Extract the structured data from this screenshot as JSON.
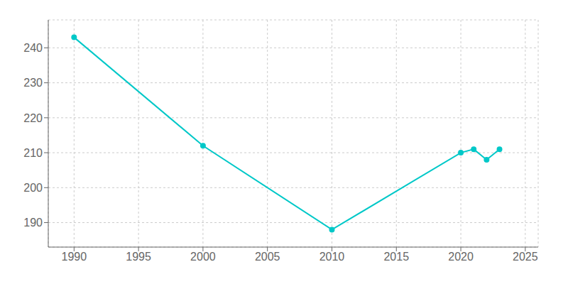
{
  "chart_data": {
    "type": "line",
    "x": [
      1990,
      2000,
      2010,
      2020,
      2021,
      2022,
      2023
    ],
    "values": [
      243,
      212,
      188,
      210,
      211,
      208,
      211
    ],
    "color": "#00C8C8",
    "marker": "circle",
    "xlim": [
      1988,
      2026
    ],
    "ylim": [
      183,
      248
    ],
    "xticks": [
      1990,
      1995,
      2000,
      2005,
      2010,
      2015,
      2020,
      2025
    ],
    "yticks": [
      190,
      200,
      210,
      220,
      230,
      240
    ],
    "grid": true
  }
}
